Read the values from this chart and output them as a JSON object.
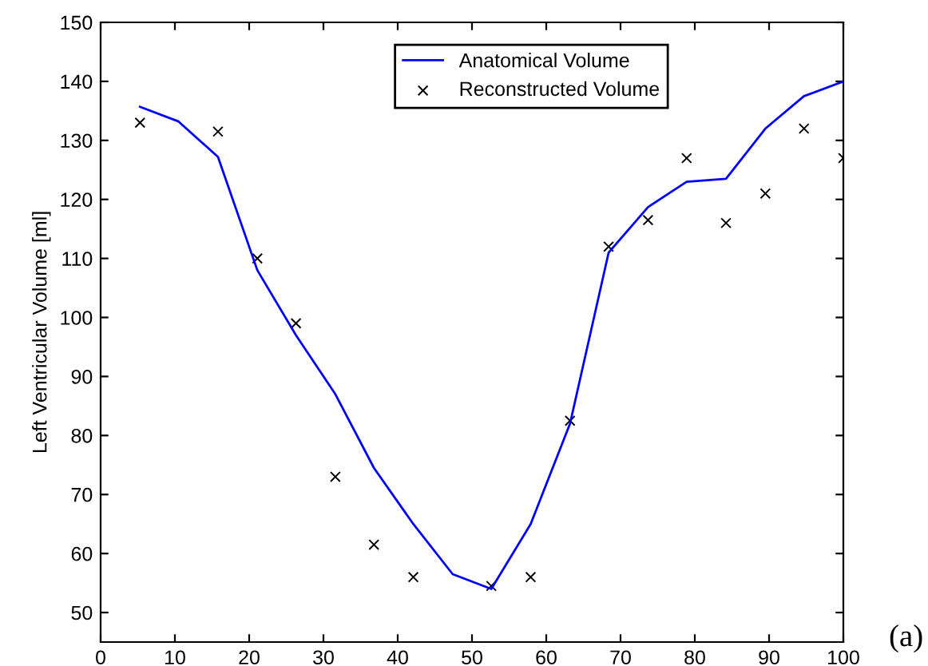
{
  "chart_data": {
    "type": "line",
    "ylabel": "Left Ventricular Volume [ml]",
    "annotations": [
      "(a)"
    ],
    "xlim": [
      0,
      100
    ],
    "xticks": [
      0,
      10,
      20,
      30,
      40,
      50,
      60,
      70,
      80,
      90,
      100
    ],
    "ylim": [
      45,
      150
    ],
    "yticks": [
      50,
      60,
      70,
      80,
      90,
      100,
      110,
      120,
      130,
      140,
      150
    ],
    "grid": false,
    "legend": "top right",
    "series": [
      {
        "name": "Anatomical Volume",
        "type": "line",
        "color": "#0000ff",
        "marker": "none",
        "x": [
          5.3,
          10.5,
          15.8,
          21.1,
          26.3,
          31.6,
          36.8,
          42.1,
          47.4,
          52.6,
          57.9,
          63.2,
          68.4,
          73.7,
          78.9,
          84.2,
          89.5,
          94.7,
          100
        ],
        "values": [
          135.7,
          133.2,
          127.2,
          108,
          97,
          87,
          74.5,
          65,
          56.5,
          54,
          65,
          82,
          111,
          118.7,
          123,
          123.5,
          132,
          137.5,
          140
        ]
      },
      {
        "name": "Reconstructed Volume",
        "type": "scatter",
        "color": "#000000",
        "marker": "cross",
        "x": [
          5.3,
          15.8,
          21.1,
          26.3,
          31.6,
          36.8,
          42.1,
          52.6,
          57.9,
          63.2,
          68.4,
          73.7,
          78.9,
          84.2,
          89.5,
          94.7,
          100
        ],
        "values": [
          133,
          131.5,
          110,
          99,
          73,
          61.5,
          56,
          54.5,
          56,
          82.5,
          112,
          116.5,
          127,
          116,
          121,
          132,
          127
        ]
      }
    ]
  }
}
